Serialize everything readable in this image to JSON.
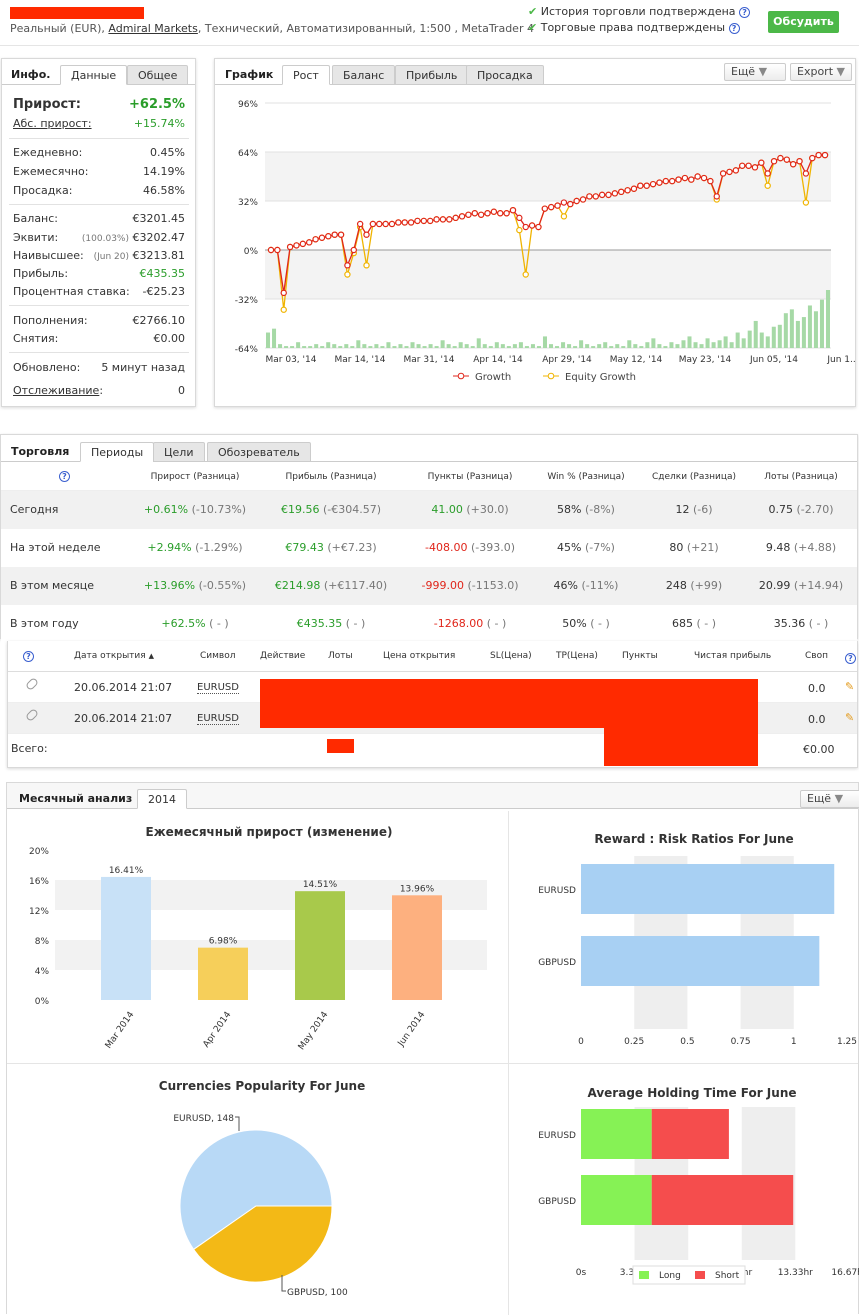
{
  "header": {
    "account_line_prefix": "Реальный (EUR),",
    "broker": "Admiral Markets",
    "account_line_suffix": ", Технический, Автоматизированный, 1:500 , MetaTrader 4",
    "check1": "История торговли подтверждена",
    "check2": "Торговые права подтверждены",
    "discuss_button": "Обсудить",
    "colors": {
      "accent": "#4cb848",
      "redact": "#ff2a00"
    }
  },
  "info": {
    "title": "Инфо.",
    "tabs": [
      "Данные",
      "Общее"
    ],
    "growth_label": "Прирост:",
    "growth_value": "+62.5%",
    "abs_label": "Абс. прирост:",
    "abs_value": "+15.74%",
    "daily_label": "Ежедневно:",
    "daily_value": "0.45%",
    "monthly_label": "Ежемесячно:",
    "monthly_value": "14.19%",
    "dd_label": "Просадка:",
    "dd_value": "46.58%",
    "balance_label": "Баланс:",
    "balance_value": "€3201.45",
    "equity_label": "Эквити:",
    "equity_pct": "(100.03%)",
    "equity_value": "€3202.47",
    "highest_label": "Наивысшее:",
    "highest_date": "(Jun 20)",
    "highest_value": "€3213.81",
    "profit_label": "Прибыль:",
    "profit_value": "€435.35",
    "rate_label": "Процентная ставка:",
    "rate_value": "-€25.23",
    "deposits_label": "Пополнения:",
    "deposits_value": "€2766.10",
    "withdrawals_label": "Снятия:",
    "withdrawals_value": "€0.00",
    "updated_label": "Обновлено:",
    "updated_value": "5 минут назад",
    "tracking_label": "Отслеживание",
    "tracking_colon": ":",
    "tracking_value": "0"
  },
  "chart": {
    "title": "График",
    "tabs": [
      "Рост",
      "Баланс",
      "Прибыль",
      "Просадка"
    ],
    "more": "Ещё",
    "export": "Export"
  },
  "chart_data": [
    {
      "type": "line",
      "title": "",
      "y_ticks": [
        "96%",
        "64%",
        "32%",
        "0%",
        "-32%",
        "-64%"
      ],
      "ylim": [
        -64,
        96
      ],
      "x_ticks": [
        "Mar 03, '14",
        "Mar 14, '14",
        "Mar 31, '14",
        "Apr 14, '14",
        "Apr 29, '14",
        "May 12, '14",
        "May 23, '14",
        "Jun 05, '14",
        "Jun 1..."
      ],
      "series": [
        {
          "name": "Growth",
          "color": "#e0261b",
          "values": [
            0,
            0,
            -28,
            2,
            3,
            4,
            5,
            7,
            8,
            9,
            10,
            10,
            -10,
            0,
            17,
            10,
            17,
            17,
            17,
            17,
            18,
            18,
            18,
            19,
            19,
            19,
            20,
            20,
            20,
            21,
            22,
            23,
            24,
            23,
            24,
            25,
            24,
            24,
            26,
            21,
            15,
            16,
            15,
            27,
            28,
            29,
            31,
            30,
            32,
            33,
            35,
            35,
            36,
            36,
            37,
            38,
            39,
            40,
            42,
            42,
            43,
            44,
            45,
            45,
            46,
            47,
            46,
            48,
            47,
            45,
            35,
            50,
            51,
            52,
            55,
            55,
            54,
            57,
            50,
            58,
            60,
            59,
            56,
            58,
            50,
            60,
            62,
            62
          ]
        },
        {
          "name": "Equity Growth",
          "color": "#f0b400",
          "values": [
            0,
            0,
            -39,
            2,
            3,
            4,
            5,
            7,
            8,
            9,
            10,
            10,
            -16,
            -2,
            15,
            -10,
            17,
            17,
            17,
            17,
            18,
            18,
            18,
            19,
            19,
            19,
            20,
            20,
            20,
            21,
            22,
            23,
            24,
            23,
            24,
            25,
            24,
            24,
            26,
            13,
            -16,
            16,
            15,
            27,
            28,
            29,
            22,
            30,
            32,
            33,
            35,
            35,
            36,
            36,
            37,
            38,
            39,
            40,
            42,
            42,
            43,
            44,
            45,
            45,
            46,
            47,
            46,
            48,
            47,
            45,
            33,
            50,
            51,
            52,
            55,
            55,
            54,
            57,
            42,
            58,
            60,
            59,
            56,
            58,
            31,
            60,
            62,
            62
          ]
        }
      ],
      "volume": [
        8,
        10,
        2,
        1,
        1,
        3,
        1,
        1,
        2,
        1,
        3,
        2,
        1,
        2,
        1,
        4,
        2,
        1,
        2,
        1,
        3,
        1,
        2,
        1,
        3,
        2,
        1,
        2,
        1,
        4,
        2,
        1,
        3,
        2,
        1,
        5,
        2,
        1,
        3,
        2,
        1,
        2,
        3,
        1,
        2,
        1,
        6,
        2,
        1,
        3,
        2,
        1,
        4,
        2,
        1,
        2,
        3,
        1,
        2,
        1,
        4,
        2,
        1,
        3,
        5,
        2,
        1,
        3,
        2,
        4,
        6,
        3,
        2,
        5,
        3,
        4,
        6,
        3,
        8,
        5,
        9,
        14,
        8,
        6,
        11,
        12,
        18,
        20,
        14,
        16,
        22,
        19,
        25,
        30
      ]
    },
    {
      "type": "bar",
      "title": "Ежемесячный прирост (изменение)",
      "categories": [
        "Mar 2014",
        "Apr 2014",
        "May 2014",
        "Jun 2014"
      ],
      "values": [
        16.41,
        6.98,
        14.51,
        13.96
      ],
      "labels": [
        "16.41%",
        "6.98%",
        "14.51%",
        "13.96%"
      ],
      "colors": [
        "#c8e1f7",
        "#f6cf5a",
        "#a8c94b",
        "#fdb07f"
      ],
      "ylim": [
        0,
        20
      ],
      "y_ticks": [
        "20%",
        "16%",
        "12%",
        "8%",
        "4%",
        "0%"
      ]
    },
    {
      "type": "bar",
      "title": "Reward : Risk Ratios For June",
      "categories": [
        "EURUSD",
        "GBPUSD"
      ],
      "values": [
        1.19,
        1.12
      ],
      "xlim": [
        0,
        1.25
      ],
      "x_ticks": [
        "0",
        "0.25",
        "0.5",
        "0.75",
        "1",
        "1.25"
      ]
    },
    {
      "type": "pie",
      "title": "Currencies Popularity For June",
      "labels": [
        "EURUSD, 148",
        "GBPUSD, 100"
      ],
      "values": [
        148,
        100
      ],
      "colors": [
        "#b8d9f6",
        "#f3b916"
      ]
    },
    {
      "type": "bar",
      "title": "Average Holding Time For June",
      "categories": [
        "EURUSD",
        "GBPUSD"
      ],
      "series": [
        {
          "name": "Long",
          "values": [
            4.4,
            4.4
          ],
          "color": "#86f255"
        },
        {
          "name": "Short",
          "values": [
            4.8,
            8.8
          ],
          "color": "#f54d4d"
        }
      ],
      "xlim": [
        0,
        16.67
      ],
      "x_ticks": [
        "0s",
        "3.33hr",
        "6.67hr",
        "10hr",
        "13.33hr",
        "16.67hr"
      ]
    }
  ],
  "trading": {
    "title": "Торговля",
    "tabs": [
      "Периоды",
      "Цели",
      "Обозреватель"
    ],
    "headers": [
      "Прирост (Разница)",
      "Прибыль (Разница)",
      "Пункты (Разница)",
      "Win % (Разница)",
      "Сделки (Разница)",
      "Лоты (Разница)"
    ],
    "rows": [
      {
        "period": "Сегодня",
        "growth": "+0.61%",
        "growth_d": "(-10.73%)",
        "profit": "€19.56",
        "profit_d": "(-€304.57)",
        "pips": "41.00",
        "pips_d": "(+30.0)",
        "win": "58%",
        "win_d": "(-8%)",
        "trades": "12",
        "trades_d": "(-6)",
        "lots": "0.75",
        "lots_d": "(-2.70)"
      },
      {
        "period": "На этой неделе",
        "growth": "+2.94%",
        "growth_d": "(-1.29%)",
        "profit": "€79.43",
        "profit_d": "(+€7.23)",
        "pips": "-408.00",
        "pips_d": "(-393.0)",
        "win": "45%",
        "win_d": "(-7%)",
        "trades": "80",
        "trades_d": "(+21)",
        "lots": "9.48",
        "lots_d": "(+4.88)"
      },
      {
        "period": "В этом месяце",
        "growth": "+13.96%",
        "growth_d": "(-0.55%)",
        "profit": "€214.98",
        "profit_d": "(+€117.40)",
        "pips": "-999.00",
        "pips_d": "(-1153.0)",
        "win": "46%",
        "win_d": "(-11%)",
        "trades": "248",
        "trades_d": "(+99)",
        "lots": "20.99",
        "lots_d": "(+14.94)"
      },
      {
        "period": "В этом году",
        "growth": "+62.5%",
        "growth_d": "( - )",
        "profit": "€435.35",
        "profit_d": "( - )",
        "pips": "-1268.00",
        "pips_d": "( - )",
        "win": "50%",
        "win_d": "( - )",
        "trades": "685",
        "trades_d": "( - )",
        "lots": "35.36",
        "lots_d": "( - )"
      }
    ]
  },
  "open_trades": {
    "headers": [
      "Дата открытия",
      "Символ",
      "Действие",
      "Лоты",
      "Цена открытия",
      "SL(Цена)",
      "TP(Цена)",
      "Пункты",
      "Чистая прибыль",
      "Своп"
    ],
    "rows": [
      {
        "date": "20.06.2014 21:07",
        "symbol": "EURUSD",
        "swap": "0.0"
      },
      {
        "date": "20.06.2014 21:07",
        "symbol": "EURUSD",
        "swap": "0.0"
      }
    ],
    "total_label": "Всего:",
    "total_swap": "€0.00"
  },
  "monthly": {
    "title": "Месячный анализ",
    "year_tab": "2014",
    "more": "Ещё"
  }
}
